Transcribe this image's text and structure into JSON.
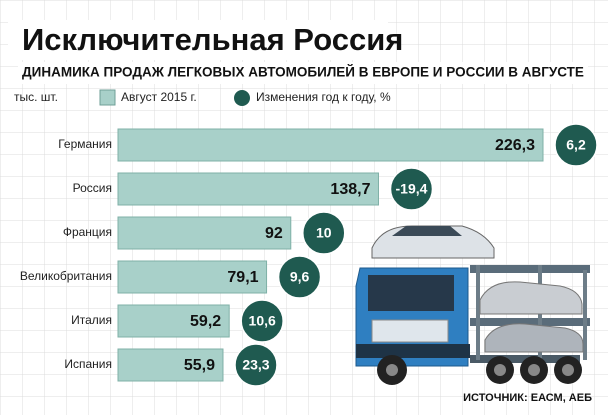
{
  "chart_data": {
    "type": "bar",
    "title": "Исключительная Россия",
    "subtitle": "ДИНАМИКА ПРОДАЖ ЛЕГКОВЫХ АВТОМОБИЛЕЙ В ЕВРОПЕ И РОССИИ В АВГУСТЕ",
    "unit_label": "тыс. шт.",
    "source": "ИСТОЧНИК: ЕАСМ, АЕБ",
    "categories": [
      "Германия",
      "Россия",
      "Франция",
      "Великобритания",
      "Италия",
      "Испания"
    ],
    "series": [
      {
        "name": "Август 2015 г.",
        "color": "#a8d0c9",
        "values": [
          226.3,
          138.7,
          92,
          79.1,
          59.2,
          55.9
        ],
        "value_labels": [
          "226,3",
          "138,7",
          "92",
          "79,1",
          "59,2",
          "55,9"
        ]
      },
      {
        "name": "Изменения год к году, %",
        "color": "#1f5a50",
        "values": [
          6.2,
          -19.4,
          10,
          9.6,
          10.6,
          23.3
        ],
        "value_labels": [
          "6,2",
          "-19,4",
          "10",
          "9,6",
          "10,6",
          "23,3"
        ]
      }
    ]
  }
}
